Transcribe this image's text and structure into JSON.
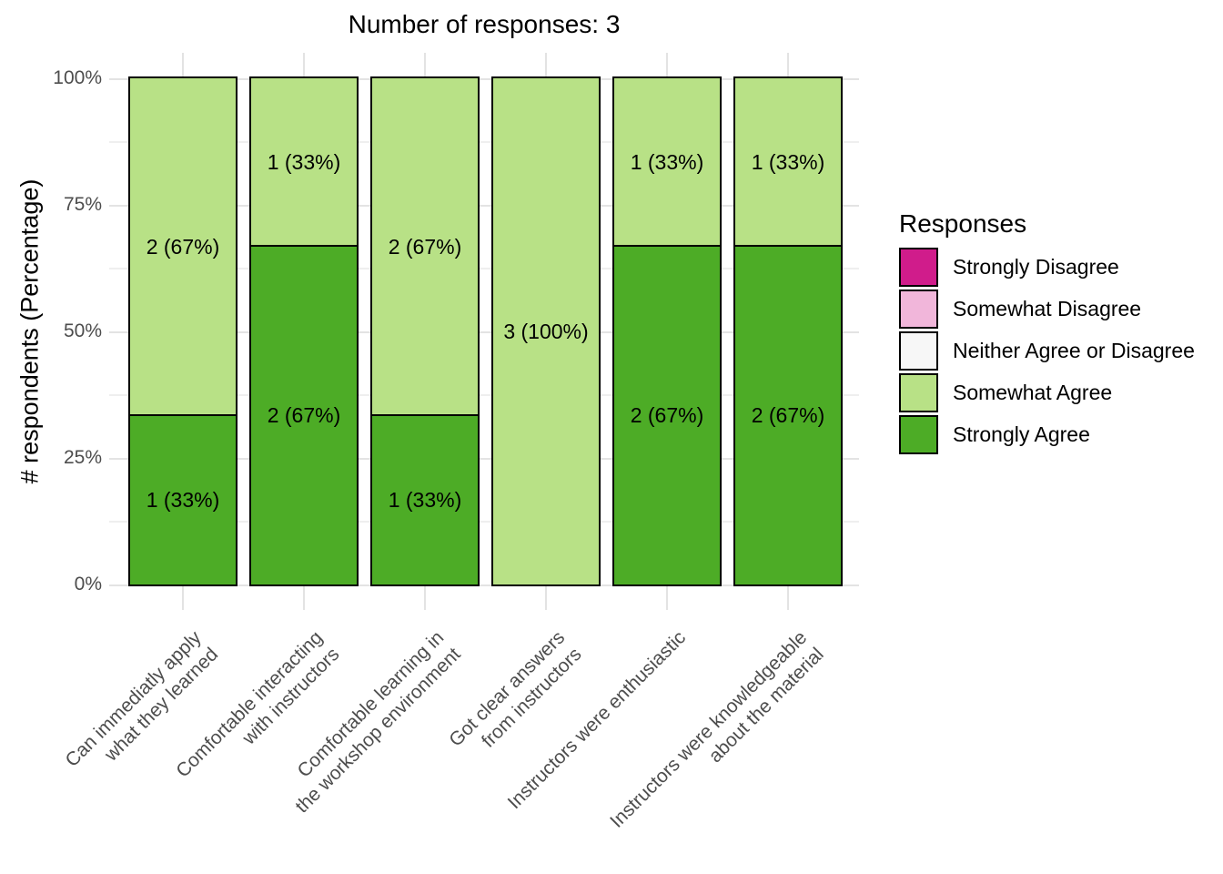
{
  "chart_data": {
    "type": "bar",
    "stacked": true,
    "orientation": "vertical",
    "title": "Number of responses: 3",
    "ylabel": "# respondents (Percentage)",
    "xlabel": "",
    "ylim": [
      0,
      100
    ],
    "yticks": [
      "0%",
      "25%",
      "50%",
      "75%",
      "100%"
    ],
    "grid": true,
    "categories": [
      "Can immediatly apply what they learned",
      "Comfortable interacting with instructors",
      "Comfortable learning in the workshop environment",
      "Got clear answers from instructors",
      "Instructors were enthusiastic",
      "Instructors were knowledgeable about the material"
    ],
    "categories_lines": [
      [
        "Can immediatly apply",
        "what they learned"
      ],
      [
        "Comfortable interacting",
        "with instructors"
      ],
      [
        "Comfortable learning in",
        "the workshop environment"
      ],
      [
        "Got clear answers",
        "from instructors"
      ],
      [
        "Instructors were enthusiastic",
        ""
      ],
      [
        "Instructors were knowledgeable",
        "about the material"
      ]
    ],
    "series": [
      {
        "name": "Strongly Disagree",
        "color": "#D01C8B",
        "values": [
          0,
          0,
          0,
          0,
          0,
          0
        ]
      },
      {
        "name": "Somewhat Disagree",
        "color": "#F1B6DA",
        "values": [
          0,
          0,
          0,
          0,
          0,
          0
        ]
      },
      {
        "name": "Neither Agree or Disagree",
        "color": "#F7F7F7",
        "values": [
          0,
          0,
          0,
          0,
          0,
          0
        ]
      },
      {
        "name": "Somewhat Agree",
        "color": "#B8E186",
        "values": [
          2,
          1,
          2,
          3,
          1,
          1
        ]
      },
      {
        "name": "Strongly Agree",
        "color": "#4DAC26",
        "values": [
          1,
          2,
          1,
          0,
          2,
          2
        ]
      }
    ],
    "bars": [
      {
        "category": "Can immediatly apply what they learned",
        "segments": [
          {
            "response": "Somewhat Agree",
            "count": 2,
            "pct": 66.7,
            "label": "2 (67%)",
            "color": "#B8E186"
          },
          {
            "response": "Strongly Agree",
            "count": 1,
            "pct": 33.3,
            "label": "1 (33%)",
            "color": "#4DAC26"
          }
        ]
      },
      {
        "category": "Comfortable interacting with instructors",
        "segments": [
          {
            "response": "Somewhat Agree",
            "count": 1,
            "pct": 33.3,
            "label": "1 (33%)",
            "color": "#B8E186"
          },
          {
            "response": "Strongly Agree",
            "count": 2,
            "pct": 66.7,
            "label": "2 (67%)",
            "color": "#4DAC26"
          }
        ]
      },
      {
        "category": "Comfortable learning in the workshop environment",
        "segments": [
          {
            "response": "Somewhat Agree",
            "count": 2,
            "pct": 66.7,
            "label": "2 (67%)",
            "color": "#B8E186"
          },
          {
            "response": "Strongly Agree",
            "count": 1,
            "pct": 33.3,
            "label": "1 (33%)",
            "color": "#4DAC26"
          }
        ]
      },
      {
        "category": "Got clear answers from instructors",
        "segments": [
          {
            "response": "Somewhat Agree",
            "count": 3,
            "pct": 100,
            "label": "3 (100%)",
            "color": "#B8E186"
          }
        ]
      },
      {
        "category": "Instructors were enthusiastic",
        "segments": [
          {
            "response": "Somewhat Agree",
            "count": 1,
            "pct": 33.3,
            "label": "1 (33%)",
            "color": "#B8E186"
          },
          {
            "response": "Strongly Agree",
            "count": 2,
            "pct": 66.7,
            "label": "2 (67%)",
            "color": "#4DAC26"
          }
        ]
      },
      {
        "category": "Instructors were knowledgeable about the material",
        "segments": [
          {
            "response": "Somewhat Agree",
            "count": 1,
            "pct": 33.3,
            "label": "1 (33%)",
            "color": "#B8E186"
          },
          {
            "response": "Strongly Agree",
            "count": 2,
            "pct": 66.7,
            "label": "2 (67%)",
            "color": "#4DAC26"
          }
        ]
      }
    ],
    "legend": {
      "title": "Responses",
      "position": "right",
      "items": [
        {
          "label": "Strongly Disagree",
          "color": "#D01C8B"
        },
        {
          "label": "Somewhat Disagree",
          "color": "#F1B6DA"
        },
        {
          "label": "Neither Agree or Disagree",
          "color": "#F7F7F7"
        },
        {
          "label": "Somewhat Agree",
          "color": "#B8E186"
        },
        {
          "label": "Strongly Agree",
          "color": "#4DAC26"
        }
      ]
    }
  }
}
